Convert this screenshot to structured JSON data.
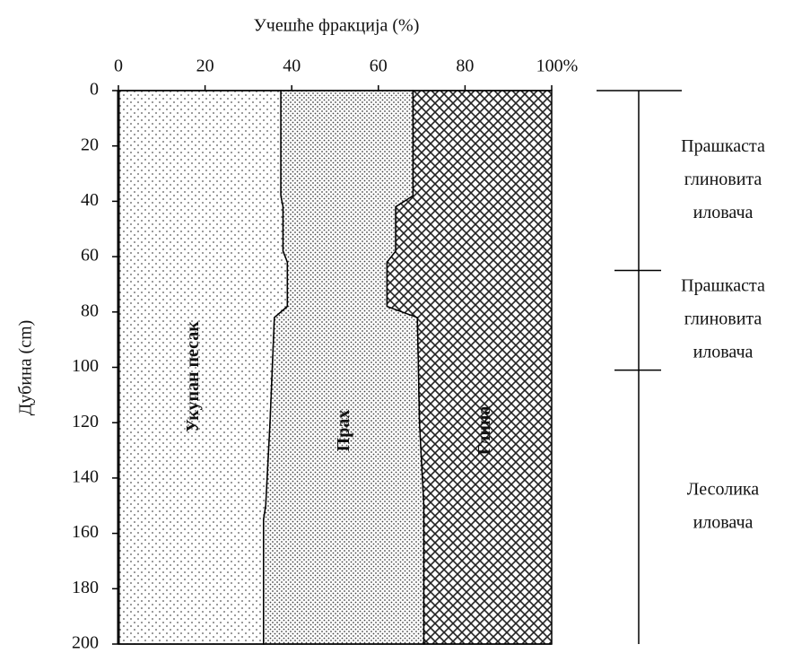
{
  "chart_data": {
    "type": "stacked_area_depth",
    "title": "Учешће фракција (%)",
    "y_label": "Дубина (cm)",
    "xlim": [
      0,
      100
    ],
    "xticks": [
      0,
      20,
      40,
      60,
      80,
      {
        "value": 100,
        "label": "100%"
      }
    ],
    "ylim": [
      0,
      200
    ],
    "yticks": [
      0,
      20,
      40,
      60,
      80,
      100,
      120,
      140,
      160,
      180,
      200
    ],
    "y_inverted": true,
    "depth": [
      0,
      38,
      42,
      58,
      62,
      78,
      82,
      120,
      150,
      155,
      200
    ],
    "series": [
      {
        "name": "Укупан песак",
        "pattern": "dots-sparse",
        "values": [
          37.5,
          37.5,
          38,
          38,
          39,
          39,
          36,
          35,
          34,
          33.5,
          33.5
        ]
      },
      {
        "name": "Прах",
        "pattern": "dots-dense",
        "values": [
          30.5,
          30.5,
          26,
          26,
          23,
          23,
          33,
          34.5,
          36.5,
          37,
          37
        ]
      },
      {
        "name": "Глина",
        "pattern": "crosshatch",
        "values": [
          32,
          32,
          36,
          36,
          38,
          38,
          31,
          30.5,
          29.5,
          29.5,
          29.5
        ]
      }
    ],
    "horizons": [
      {
        "lines": [
          "Прашкаста",
          "глиновита",
          "иловача"
        ],
        "from": 0,
        "to": 65
      },
      {
        "lines": [
          "Прашкаста",
          "глиновита",
          "иловача"
        ],
        "from": 65,
        "to": 101
      },
      {
        "lines": [
          "Лесолика",
          "иловача"
        ],
        "from": 101,
        "to": 200
      }
    ]
  }
}
